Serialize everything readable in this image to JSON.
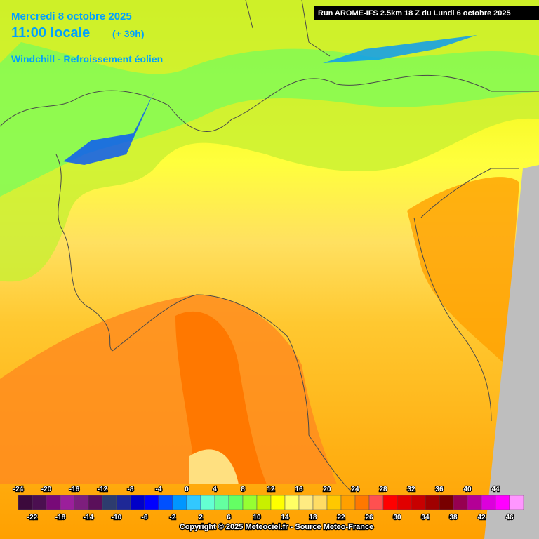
{
  "header": {
    "date": "Mercredi 8 octobre 2025",
    "time": "11:00 locale",
    "lead": "(+ 39h)",
    "parameter": "Windchill - Refroissement éolien",
    "run": "Run AROME-IFS 2.5km 18 Z du Lundi 6 octobre 2025"
  },
  "legend": {
    "values": [
      -24,
      -22,
      -20,
      -18,
      -16,
      -14,
      -12,
      -10,
      -8,
      -6,
      -4,
      -2,
      0,
      2,
      4,
      6,
      8,
      10,
      12,
      14,
      16,
      18,
      20,
      22,
      24,
      26,
      28,
      30,
      32,
      34,
      36,
      38,
      40,
      42,
      44,
      46
    ],
    "colors": [
      "#3c0a3c",
      "#4b0f50",
      "#780a78",
      "#9b1f9b",
      "#7d1e7d",
      "#5a0f5a",
      "#2d3c6e",
      "#1e2896",
      "#0000c8",
      "#0000ff",
      "#0050ff",
      "#0096ff",
      "#32c8ff",
      "#64ffd2",
      "#64ffa0",
      "#64ff64",
      "#96ff32",
      "#c8f000",
      "#ffff00",
      "#ffff64",
      "#ffeb82",
      "#ffdc64",
      "#ffc800",
      "#ffa000",
      "#ff7800",
      "#ff5050",
      "#ff0000",
      "#e10000",
      "#c80000",
      "#a00000",
      "#780000",
      "#960050",
      "#b40096",
      "#dc00dc",
      "#ff00ff",
      "#ff96ff"
    ]
  },
  "footer": {
    "copyright": "Copyright © 2025 Meteociel.fr - Source Meteo-France"
  }
}
